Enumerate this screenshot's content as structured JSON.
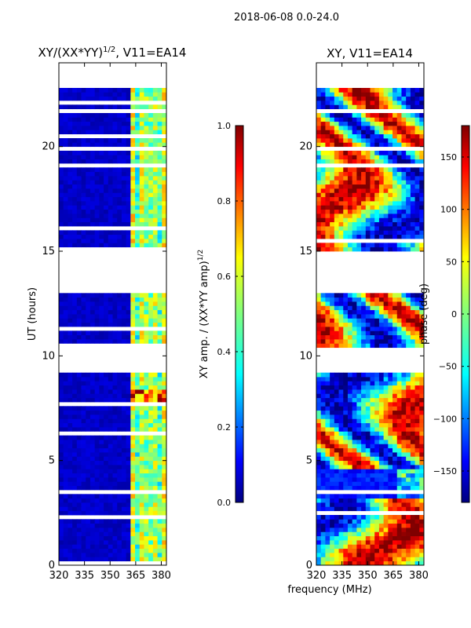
{
  "figure": {
    "suptitle": "2018-06-08 0.0-24.0",
    "xlabel": "frequency (MHz)"
  },
  "colors": {
    "jet": [
      "#00007f",
      "#0000ff",
      "#007fff",
      "#00ffff",
      "#7fff7f",
      "#ffff00",
      "#ff7f00",
      "#ff0000",
      "#7f0000"
    ],
    "background": "#ffffff"
  },
  "chart_data": [
    {
      "type": "heatmap",
      "title_main": "XY/(XX*YY)",
      "title_sup": "1/2",
      "title_tail": ", V11=EA14",
      "ylabel": "UT (hours)",
      "xlim": [
        320,
        383
      ],
      "ylim": [
        0,
        24
      ],
      "x_ticks": [
        "320",
        "335",
        "350",
        "365",
        "380"
      ],
      "y_ticks": [
        "0",
        "5",
        "10",
        "15",
        "20"
      ],
      "x_tick_values": [
        320,
        335,
        350,
        365,
        380
      ],
      "y_tick_values": [
        0,
        5,
        10,
        15,
        20
      ],
      "value_range": [
        0,
        1
      ],
      "data_hours": [
        0,
        22.8
      ],
      "gaps_hours": [
        [
          9.1,
          10.3
        ],
        [
          13.0,
          13.5
        ],
        [
          13.6,
          14.5
        ],
        [
          14.6,
          15.0
        ]
      ],
      "colorbar": {
        "label_main": "XY amp. / (XX*YY amp)",
        "label_sup": "1/2",
        "ticks": [
          "0.0",
          "0.2",
          "0.4",
          "0.6",
          "0.8",
          "1.0"
        ],
        "tick_values": [
          0.0,
          0.2,
          0.4,
          0.6,
          0.8,
          1.0
        ],
        "range": [
          0,
          1
        ]
      }
    },
    {
      "type": "heatmap",
      "title": "XY, V11=EA14",
      "xlim": [
        320,
        383
      ],
      "ylim": [
        0,
        24
      ],
      "x_ticks": [
        "320",
        "335",
        "350",
        "365",
        "380"
      ],
      "y_ticks": [
        "0",
        "5",
        "10",
        "15",
        "20"
      ],
      "x_tick_values": [
        320,
        335,
        350,
        365,
        380
      ],
      "y_tick_values": [
        0,
        5,
        10,
        15,
        20
      ],
      "value_range": [
        -180,
        180
      ],
      "data_hours": [
        0,
        22.8
      ],
      "gaps_hours": [
        [
          9.1,
          10.3
        ],
        [
          13.0,
          13.5
        ],
        [
          13.6,
          14.5
        ],
        [
          14.6,
          15.0
        ]
      ],
      "colorbar": {
        "label": "phase (deg)",
        "ticks": [
          "−150",
          "−100",
          "−50",
          "0",
          "50",
          "100",
          "150"
        ],
        "tick_values": [
          -150,
          -100,
          -50,
          0,
          50,
          100,
          150
        ],
        "range": [
          -180,
          180
        ]
      }
    }
  ]
}
